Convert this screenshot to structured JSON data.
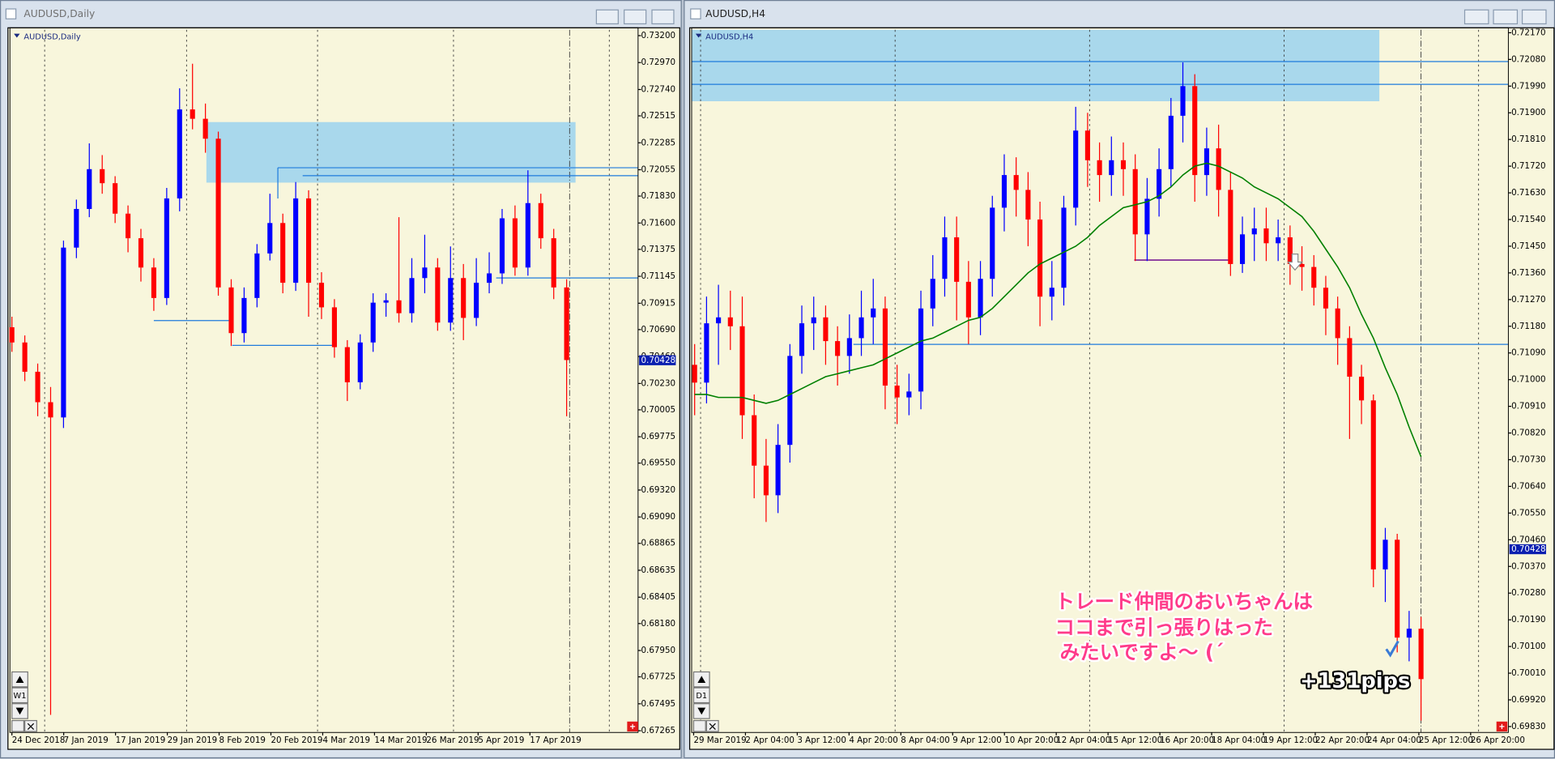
{
  "chart_data": [
    {
      "type": "candlestick",
      "window_title": "AUDUSD,Daily",
      "title": "AUDUSD,Daily",
      "timeframe_button": "W1",
      "up_color": "#0000ff",
      "down_color": "#ff0000",
      "bid": 0.70428,
      "ylim": [
        0.6725,
        0.7325
      ],
      "yticks": [
        {
          "value": 0.732,
          "label": "0.73200"
        },
        {
          "value": 0.7297,
          "label": "0.72970"
        },
        {
          "value": 0.7274,
          "label": "0.72740"
        },
        0.72515,
        0.72285,
        0.72055,
        {
          "value": 0.7183,
          "label": "0.71830"
        },
        {
          "value": 0.716,
          "label": "0.71600"
        },
        0.71375,
        0.71145,
        0.70915,
        {
          "value": 0.7069,
          "label": "0.70690"
        },
        {
          "value": 0.7046,
          "label": "0.70460"
        },
        {
          "value": 0.7023,
          "label": "0.70230"
        },
        0.70005,
        0.69775,
        {
          "value": 0.6955,
          "label": "0.69550"
        },
        {
          "value": 0.6932,
          "label": "0.69320"
        },
        {
          "value": 0.6909,
          "label": "0.69090"
        },
        0.68865,
        0.68635,
        0.68405,
        {
          "value": 0.6818,
          "label": "0.68180"
        },
        {
          "value": 0.6795,
          "label": "0.67950"
        },
        0.67725,
        0.67495,
        0.67265
      ],
      "x_labels": [
        "24 Dec 2018",
        "7 Jan 2019",
        "17 Jan 2019",
        "29 Jan 2019",
        "8 Feb 2019",
        "20 Feb 2019",
        "4 Mar 2019",
        "14 Mar 2019",
        "26 Mar 2019",
        "5 Apr 2019",
        "17 Apr 2019"
      ],
      "ohlc": [
        [
          0.7071,
          0.708,
          0.705,
          0.7058
        ],
        [
          0.7058,
          0.7064,
          0.7025,
          0.7033
        ],
        [
          0.7033,
          0.704,
          0.6995,
          0.7007
        ],
        [
          0.7007,
          0.702,
          0.674,
          0.6994
        ],
        [
          0.6994,
          0.7145,
          0.6985,
          0.7139
        ],
        [
          0.7139,
          0.718,
          0.713,
          0.7172
        ],
        [
          0.7172,
          0.7228,
          0.7165,
          0.7206
        ],
        [
          0.7206,
          0.7218,
          0.7185,
          0.7194
        ],
        [
          0.7194,
          0.72,
          0.716,
          0.7168
        ],
        [
          0.7168,
          0.7175,
          0.7135,
          0.7147
        ],
        [
          0.7147,
          0.7155,
          0.711,
          0.7122
        ],
        [
          0.7122,
          0.713,
          0.7085,
          0.7096
        ],
        [
          0.7096,
          0.719,
          0.709,
          0.7181
        ],
        [
          0.7181,
          0.7275,
          0.717,
          0.7257
        ],
        [
          0.7257,
          0.7296,
          0.724,
          0.7249
        ],
        [
          0.7249,
          0.7262,
          0.722,
          0.7232
        ],
        [
          0.7232,
          0.7238,
          0.7098,
          0.7105
        ],
        [
          0.7105,
          0.7112,
          0.7055,
          0.7066
        ],
        [
          0.7066,
          0.7105,
          0.7058,
          0.7096
        ],
        [
          0.7096,
          0.7142,
          0.7088,
          0.7134
        ],
        [
          0.7134,
          0.7185,
          0.7128,
          0.716
        ],
        [
          0.716,
          0.7168,
          0.71,
          0.7109
        ],
        [
          0.7109,
          0.7195,
          0.7102,
          0.7181
        ],
        [
          0.7181,
          0.7188,
          0.708,
          0.7109
        ],
        [
          0.7109,
          0.7118,
          0.7078,
          0.7088
        ],
        [
          0.7088,
          0.7095,
          0.7045,
          0.7054
        ],
        [
          0.7054,
          0.706,
          0.7008,
          0.7024
        ],
        [
          0.7024,
          0.7065,
          0.7018,
          0.7058
        ],
        [
          0.7058,
          0.71,
          0.705,
          0.7092
        ],
        [
          0.7092,
          0.71,
          0.708,
          0.7094
        ],
        [
          0.7094,
          0.7165,
          0.7075,
          0.7083
        ],
        [
          0.7083,
          0.713,
          0.7075,
          0.7113
        ],
        [
          0.7113,
          0.715,
          0.71,
          0.7122
        ],
        [
          0.7122,
          0.713,
          0.7068,
          0.7075
        ],
        [
          0.7075,
          0.714,
          0.7068,
          0.7113
        ],
        [
          0.7113,
          0.7125,
          0.706,
          0.7079
        ],
        [
          0.7079,
          0.713,
          0.7072,
          0.7109
        ],
        [
          0.7109,
          0.7135,
          0.71,
          0.7117
        ],
        [
          0.7117,
          0.7172,
          0.7108,
          0.7164
        ],
        [
          0.7164,
          0.7175,
          0.7115,
          0.7122
        ],
        [
          0.7122,
          0.7205,
          0.7115,
          0.7177
        ],
        [
          0.7177,
          0.7185,
          0.7138,
          0.7147
        ],
        [
          0.7147,
          0.7155,
          0.7095,
          0.7105
        ],
        [
          0.7105,
          0.7112,
          0.6995,
          0.7043
        ]
      ]
    },
    {
      "type": "candlestick",
      "window_title": "AUDUSD,H4",
      "title": "AUDUSD,H4",
      "timeframe_button": "D1",
      "up_color": "#0000ff",
      "down_color": "#ff0000",
      "bid": 0.70428,
      "ylim": [
        0.6981,
        0.7218
      ],
      "yticks": [
        {
          "value": 0.7217,
          "label": "0.72170"
        },
        {
          "value": 0.7208,
          "label": "0.72080"
        },
        {
          "value": 0.7199,
          "label": "0.71990"
        },
        {
          "value": 0.719,
          "label": "0.71900"
        },
        {
          "value": 0.7181,
          "label": "0.71810"
        },
        {
          "value": 0.7172,
          "label": "0.71720"
        },
        {
          "value": 0.7163,
          "label": "0.71630"
        },
        {
          "value": 0.7154,
          "label": "0.71540"
        },
        {
          "value": 0.7145,
          "label": "0.71450"
        },
        {
          "value": 0.7136,
          "label": "0.71360"
        },
        {
          "value": 0.7127,
          "label": "0.71270"
        },
        {
          "value": 0.7118,
          "label": "0.71180"
        },
        {
          "value": 0.7109,
          "label": "0.71090"
        },
        {
          "value": 0.71,
          "label": "0.71000"
        },
        {
          "value": 0.7091,
          "label": "0.70910"
        },
        {
          "value": 0.7082,
          "label": "0.70820"
        },
        {
          "value": 0.7073,
          "label": "0.70730"
        },
        {
          "value": 0.7064,
          "label": "0.70640"
        },
        {
          "value": 0.7055,
          "label": "0.70550"
        },
        {
          "value": 0.7046,
          "label": "0.70460"
        },
        {
          "value": 0.7037,
          "label": "0.70370"
        },
        {
          "value": 0.7028,
          "label": "0.70280"
        },
        {
          "value": 0.7019,
          "label": "0.70190"
        },
        {
          "value": 0.701,
          "label": "0.70100"
        },
        {
          "value": 0.7001,
          "label": "0.70010"
        },
        {
          "value": 0.6992,
          "label": "0.69920"
        },
        {
          "value": 0.6983,
          "label": "0.69830"
        }
      ],
      "x_labels": [
        "29 Mar 2019",
        "2 Apr 04:00",
        "3 Apr 12:00",
        "4 Apr 20:00",
        "8 Apr 04:00",
        "9 Apr 12:00",
        "10 Apr 20:00",
        "12 Apr 04:00",
        "15 Apr 12:00",
        "16 Apr 20:00",
        "18 Apr 04:00",
        "19 Apr 12:00",
        "22 Apr 20:00",
        "24 Apr 04:00",
        "25 Apr 12:00",
        "26 Apr 20:00"
      ],
      "ohlc": [
        [
          0.7105,
          0.7112,
          0.7088,
          0.7099
        ],
        [
          0.7099,
          0.7128,
          0.7092,
          0.7119
        ],
        [
          0.7119,
          0.7132,
          0.7105,
          0.7121
        ],
        [
          0.7121,
          0.713,
          0.711,
          0.7118
        ],
        [
          0.7118,
          0.7128,
          0.708,
          0.7088
        ],
        [
          0.7088,
          0.7095,
          0.706,
          0.7071
        ],
        [
          0.7071,
          0.708,
          0.7052,
          0.7061
        ],
        [
          0.7061,
          0.7085,
          0.7055,
          0.7078
        ],
        [
          0.7078,
          0.7112,
          0.7072,
          0.7108
        ],
        [
          0.7108,
          0.7125,
          0.7102,
          0.7119
        ],
        [
          0.7119,
          0.7128,
          0.711,
          0.7121
        ],
        [
          0.7121,
          0.7125,
          0.7105,
          0.7113
        ],
        [
          0.7113,
          0.7118,
          0.7098,
          0.7108
        ],
        [
          0.7108,
          0.7122,
          0.7102,
          0.7114
        ],
        [
          0.7114,
          0.713,
          0.7108,
          0.7121
        ],
        [
          0.7121,
          0.7134,
          0.7112,
          0.7124
        ],
        [
          0.7124,
          0.7128,
          0.709,
          0.7098
        ],
        [
          0.7098,
          0.7105,
          0.7085,
          0.7094
        ],
        [
          0.7094,
          0.7102,
          0.7088,
          0.7096
        ],
        [
          0.7096,
          0.713,
          0.709,
          0.7124
        ],
        [
          0.7124,
          0.7142,
          0.7118,
          0.7134
        ],
        [
          0.7134,
          0.7155,
          0.7128,
          0.7148
        ],
        [
          0.7148,
          0.7155,
          0.712,
          0.7133
        ],
        [
          0.7133,
          0.714,
          0.7112,
          0.7121
        ],
        [
          0.7121,
          0.714,
          0.7115,
          0.7134
        ],
        [
          0.7134,
          0.7162,
          0.7128,
          0.7158
        ],
        [
          0.7158,
          0.7176,
          0.715,
          0.7169
        ],
        [
          0.7169,
          0.7175,
          0.7155,
          0.7164
        ],
        [
          0.7164,
          0.717,
          0.7145,
          0.7154
        ],
        [
          0.7154,
          0.716,
          0.7118,
          0.7128
        ],
        [
          0.7128,
          0.714,
          0.712,
          0.7131
        ],
        [
          0.7131,
          0.7162,
          0.7125,
          0.7158
        ],
        [
          0.7158,
          0.7192,
          0.7152,
          0.7184
        ],
        [
          0.7184,
          0.719,
          0.7165,
          0.7174
        ],
        [
          0.7174,
          0.718,
          0.716,
          0.7169
        ],
        [
          0.7169,
          0.7182,
          0.7162,
          0.7174
        ],
        [
          0.7174,
          0.718,
          0.7162,
          0.7171
        ],
        [
          0.7171,
          0.7176,
          0.714,
          0.7149
        ],
        [
          0.7149,
          0.7168,
          0.714,
          0.7161
        ],
        [
          0.7161,
          0.7178,
          0.7155,
          0.7171
        ],
        [
          0.7171,
          0.7195,
          0.7165,
          0.7189
        ],
        [
          0.7189,
          0.7207,
          0.718,
          0.7199
        ],
        [
          0.7199,
          0.7203,
          0.716,
          0.7169
        ],
        [
          0.7169,
          0.7185,
          0.7162,
          0.7178
        ],
        [
          0.7178,
          0.7186,
          0.7155,
          0.7164
        ],
        [
          0.7164,
          0.717,
          0.7135,
          0.7139
        ],
        [
          0.7139,
          0.7155,
          0.7136,
          0.7149
        ],
        [
          0.7149,
          0.7158,
          0.714,
          0.7151
        ],
        [
          0.7151,
          0.7158,
          0.714,
          0.7146
        ],
        [
          0.7146,
          0.7154,
          0.714,
          0.7148
        ],
        [
          0.7148,
          0.7152,
          0.7132,
          0.7139
        ],
        [
          0.7139,
          0.7145,
          0.713,
          0.7138
        ],
        [
          0.7138,
          0.7142,
          0.7125,
          0.7131
        ],
        [
          0.7131,
          0.7135,
          0.7115,
          0.7124
        ],
        [
          0.7124,
          0.7128,
          0.7105,
          0.7114
        ],
        [
          0.7114,
          0.7118,
          0.708,
          0.7101
        ],
        [
          0.7101,
          0.7105,
          0.7085,
          0.7093
        ],
        [
          0.7093,
          0.7095,
          0.703,
          0.7036
        ],
        [
          0.7036,
          0.705,
          0.7025,
          0.7046
        ],
        [
          0.7046,
          0.7048,
          0.7008,
          0.7013
        ],
        [
          0.7013,
          0.7022,
          0.7005,
          0.7016
        ],
        [
          0.7016,
          0.702,
          0.6985,
          0.6999
        ]
      ],
      "ma": {
        "color": "#008000",
        "values": [
          0.7095,
          0.7095,
          0.7094,
          0.7094,
          0.7094,
          0.7093,
          0.7092,
          0.7093,
          0.7095,
          0.7097,
          0.7099,
          0.7101,
          0.7102,
          0.7103,
          0.7104,
          0.7105,
          0.7107,
          0.7109,
          0.7111,
          0.7113,
          0.7114,
          0.7116,
          0.7118,
          0.712,
          0.7121,
          0.7124,
          0.7128,
          0.7132,
          0.7136,
          0.7139,
          0.7141,
          0.7143,
          0.7145,
          0.7148,
          0.7152,
          0.7155,
          0.7158,
          0.7159,
          0.716,
          0.7162,
          0.7165,
          0.7169,
          0.7172,
          0.7173,
          0.7172,
          0.717,
          0.7168,
          0.7165,
          0.7163,
          0.7161,
          0.7158,
          0.7155,
          0.715,
          0.7144,
          0.7138,
          0.7131,
          0.7122,
          0.7114,
          0.7104,
          0.7095,
          0.7084,
          0.7074
        ]
      },
      "annotations": [
        "トレード仲間のおいちゃんは",
        "ココまで引っ張りはった",
        "みたいですよ～ (´"
      ],
      "result": "+131pips"
    }
  ]
}
